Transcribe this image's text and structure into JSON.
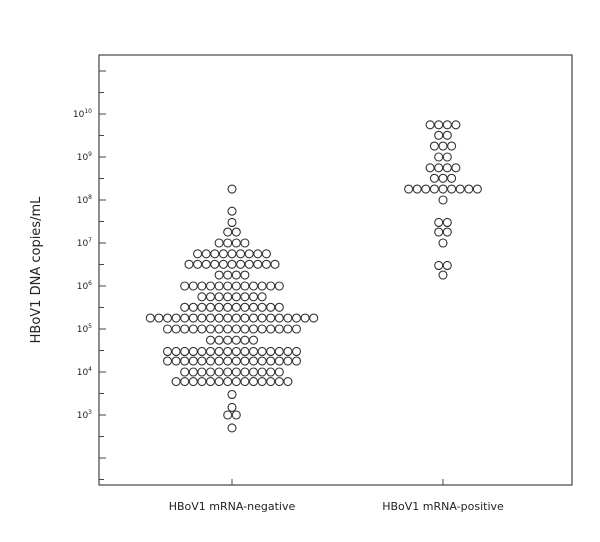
{
  "chart_data": {
    "type": "scatter",
    "subtype": "dot-plot",
    "title": "",
    "xlabel": "",
    "ylabel": "HBoV1 DNA copies/mL",
    "yscale": "log",
    "ylim": [
      10,
      100000000000
    ],
    "grid": false,
    "legend": "none",
    "yticks": [
      {
        "base": "10",
        "exp": "3",
        "value": 1000
      },
      {
        "base": "10",
        "exp": "4",
        "value": 10000
      },
      {
        "base": "10",
        "exp": "5",
        "value": 100000
      },
      {
        "base": "10",
        "exp": "6",
        "value": 1000000
      },
      {
        "base": "10",
        "exp": "7",
        "value": 10000000
      },
      {
        "base": "10",
        "exp": "8",
        "value": 100000000
      },
      {
        "base": "10",
        "exp": "9",
        "value": 1000000000
      },
      {
        "base": "10",
        "exp": "10",
        "value": 10000000000
      }
    ],
    "categories": [
      "HBoV1 mRNA-negative",
      "HBoV1 mRNA-positive"
    ],
    "series": [
      {
        "category": "HBoV1 mRNA-negative",
        "values": [
          500,
          1000,
          1000,
          1500,
          3000,
          6000,
          6000,
          6000,
          6000,
          6000,
          6000,
          6000,
          6000,
          6000,
          6000,
          6000,
          6000,
          6000,
          6000,
          10000,
          10000,
          10000,
          10000,
          10000,
          10000,
          10000,
          10000,
          10000,
          10000,
          10000,
          10000,
          18000,
          18000,
          18000,
          18000,
          18000,
          18000,
          18000,
          18000,
          18000,
          18000,
          18000,
          18000,
          18000,
          18000,
          18000,
          18000,
          30000,
          30000,
          30000,
          30000,
          30000,
          30000,
          30000,
          30000,
          30000,
          30000,
          30000,
          30000,
          30000,
          30000,
          30000,
          30000,
          55000,
          55000,
          55000,
          55000,
          55000,
          55000,
          100000,
          100000,
          100000,
          100000,
          100000,
          100000,
          100000,
          100000,
          100000,
          100000,
          100000,
          100000,
          100000,
          100000,
          100000,
          100000,
          180000,
          180000,
          180000,
          180000,
          180000,
          180000,
          180000,
          180000,
          180000,
          180000,
          180000,
          180000,
          180000,
          180000,
          180000,
          180000,
          180000,
          180000,
          180000,
          180000,
          320000,
          320000,
          320000,
          320000,
          320000,
          320000,
          320000,
          320000,
          320000,
          320000,
          320000,
          320000,
          560000,
          560000,
          560000,
          560000,
          560000,
          560000,
          560000,
          560000,
          1000000,
          1000000,
          1000000,
          1000000,
          1000000,
          1000000,
          1000000,
          1000000,
          1000000,
          1000000,
          1000000,
          1000000,
          1800000,
          1800000,
          1800000,
          1800000,
          3200000,
          3200000,
          3200000,
          3200000,
          3200000,
          3200000,
          3200000,
          3200000,
          3200000,
          3200000,
          3200000,
          5600000,
          5600000,
          5600000,
          5600000,
          5600000,
          5600000,
          5600000,
          5600000,
          5600000,
          10000000,
          10000000,
          10000000,
          10000000,
          18000000,
          18000000,
          30000000,
          55000000,
          180000000
        ]
      },
      {
        "category": "HBoV1 mRNA-positive",
        "values": [
          1800000,
          3000000,
          3000000,
          10000000,
          18000000,
          18000000,
          30000000,
          30000000,
          100000000,
          180000000,
          180000000,
          180000000,
          180000000,
          180000000,
          180000000,
          180000000,
          180000000,
          180000000,
          320000000,
          320000000,
          320000000,
          560000000,
          560000000,
          560000000,
          560000000,
          1000000000,
          1000000000,
          1800000000,
          1800000000,
          1800000000,
          3200000000,
          3200000000,
          5600000000,
          5600000000,
          5600000000,
          5600000000
        ]
      }
    ]
  }
}
